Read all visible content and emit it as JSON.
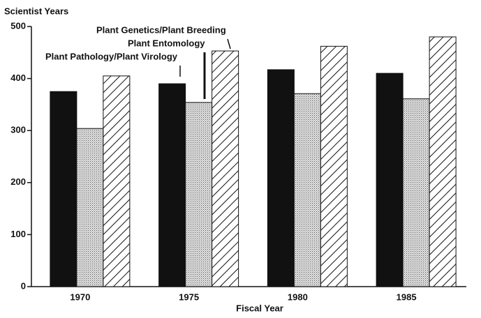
{
  "chart_data": {
    "type": "bar",
    "y_label": "Scientist Years",
    "x_label": "Fiscal Year",
    "categories": [
      "1970",
      "1975",
      "1980",
      "1985"
    ],
    "series": [
      {
        "name": "Plant Pathology/Plant Virology",
        "color": "#111111",
        "pattern": "solid",
        "values": [
          375,
          390,
          417,
          410
        ]
      },
      {
        "name": "Plant Entomology",
        "color": "#111111",
        "pattern": "dots",
        "values": [
          304,
          354,
          371,
          361
        ]
      },
      {
        "name": "Plant Genetics/Plant Breeding",
        "color": "#111111",
        "pattern": "hatch",
        "values": [
          405,
          453,
          462,
          480
        ]
      }
    ],
    "ylim": [
      0,
      500
    ],
    "yticks": [
      0,
      100,
      200,
      300,
      400,
      500
    ],
    "grid": false
  }
}
